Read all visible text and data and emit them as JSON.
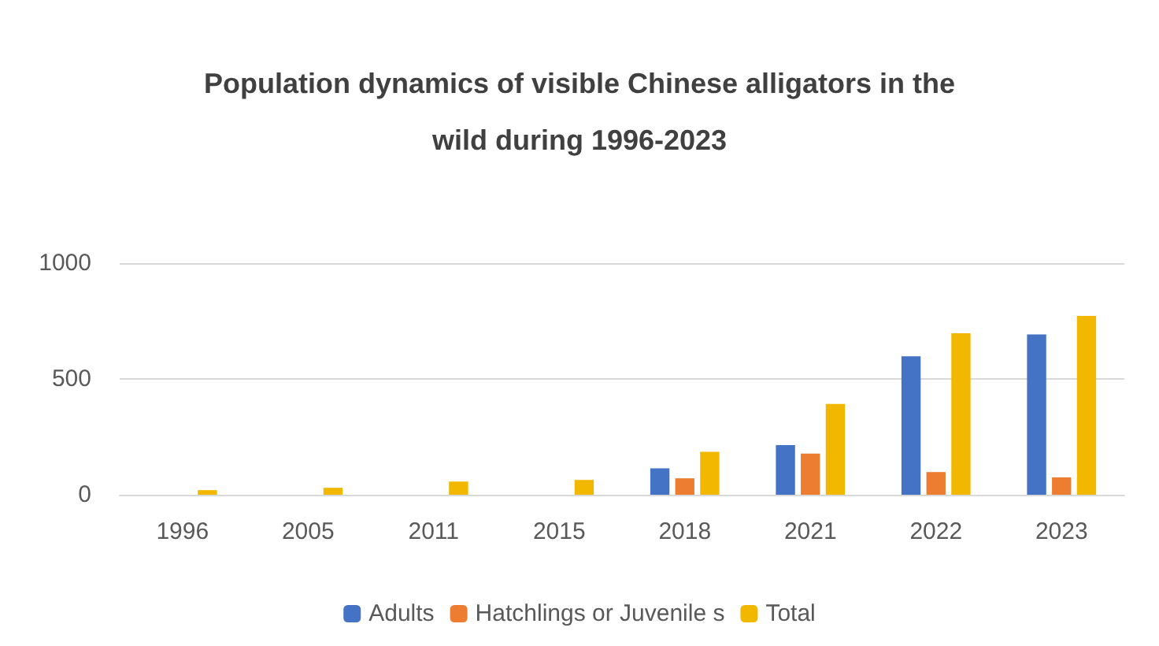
{
  "chart_data": {
    "type": "bar",
    "title": "Population dynamics of visible Chinese alligators in the\nwild during 1996-2023",
    "categories": [
      "1996",
      "2005",
      "2011",
      "2015",
      "2018",
      "2021",
      "2022",
      "2023"
    ],
    "series": [
      {
        "name": "Adults",
        "color": "#4472c4",
        "values": [
          null,
          null,
          null,
          null,
          114,
          214,
          598,
          692
        ]
      },
      {
        "name": "Hatchlings or Juvenile s",
        "color": "#ed7d31",
        "values": [
          null,
          null,
          null,
          null,
          71,
          178,
          98,
          75
        ]
      },
      {
        "name": "Total",
        "color": "#f2b800",
        "values": [
          20,
          30,
          57,
          64,
          185,
          392,
          697,
          772
        ]
      }
    ],
    "ylim": [
      0,
      1000
    ],
    "yticks": [
      0,
      500,
      1000
    ],
    "grid": "y",
    "legend": "bottom"
  }
}
